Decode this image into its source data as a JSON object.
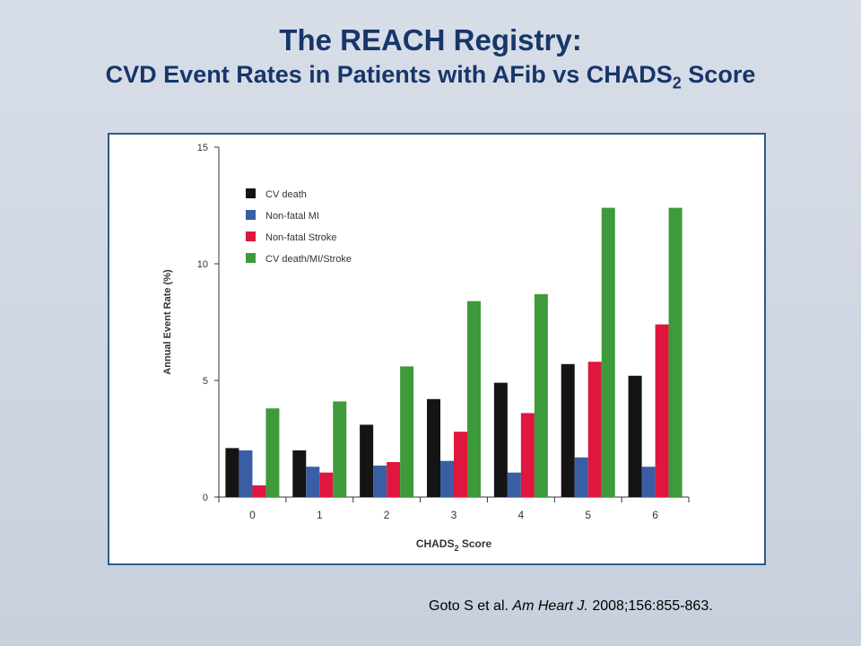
{
  "slide": {
    "title": "The REACH Registry:",
    "subtitle_main": "CVD Event Rates in Patients with AFib vs CHADS",
    "subtitle_sub": "2",
    "subtitle_end": " Score"
  },
  "citation": {
    "authors": "Goto S et al.",
    "journal": "Am Heart J.",
    "details": "2008;156:855-863."
  },
  "colors": {
    "cv_death": "#141414",
    "nonfatal_mi": "#3a5ea3",
    "nonfatal_stroke": "#e0163e",
    "composite": "#3e9a3a"
  },
  "chart_data": {
    "type": "bar",
    "categories": [
      "0",
      "1",
      "2",
      "3",
      "4",
      "5",
      "6"
    ],
    "series": [
      {
        "name": "CV death",
        "color": "#141414",
        "values": [
          2.1,
          2.0,
          3.1,
          4.2,
          4.9,
          5.7,
          5.2
        ]
      },
      {
        "name": "Non-fatal MI",
        "color": "#3a5ea3",
        "values": [
          2.0,
          1.3,
          1.35,
          1.55,
          1.05,
          1.7,
          1.3
        ]
      },
      {
        "name": "Non-fatal Stroke",
        "color": "#e0163e",
        "values": [
          0.5,
          1.05,
          1.5,
          2.8,
          3.6,
          5.8,
          7.4
        ]
      },
      {
        "name": "CV death/MI/Stroke",
        "color": "#3e9a3a",
        "values": [
          3.8,
          4.1,
          5.6,
          8.4,
          8.7,
          12.4,
          12.4
        ]
      }
    ],
    "xlabel": "CHADS",
    "xlabel_sub": "2",
    "xlabel_end": " Score",
    "ylabel": "Annual Event Rate (%)",
    "yticks": [
      0,
      5,
      10,
      15
    ],
    "ylim": [
      0,
      15
    ],
    "legend_position": "top-left"
  }
}
